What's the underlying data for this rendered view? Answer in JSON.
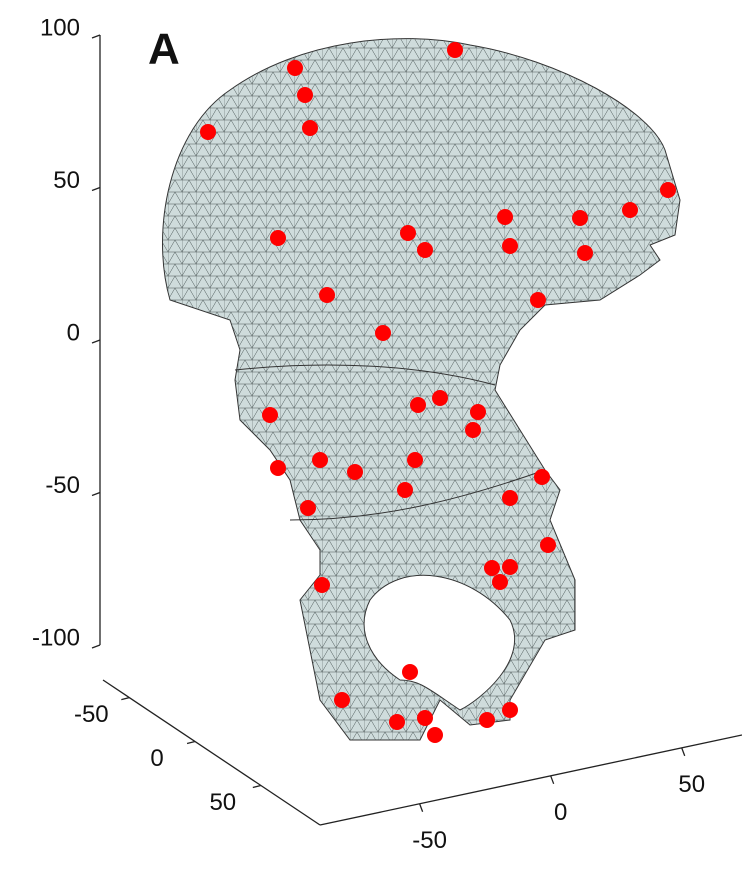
{
  "chart_data": {
    "type": "mesh3d",
    "panel_label": "A",
    "zlim": [
      -100,
      100
    ],
    "zticks": [
      -100,
      -50,
      0,
      50,
      100
    ],
    "ylim": [
      -70,
      95
    ],
    "yticks": [
      -50,
      0,
      50
    ],
    "xlim": [
      -88,
      73
    ],
    "xticks": [
      -50,
      0,
      50
    ],
    "mesh_color": "#cfdcdc",
    "marker_color": "#ff0000"
  }
}
